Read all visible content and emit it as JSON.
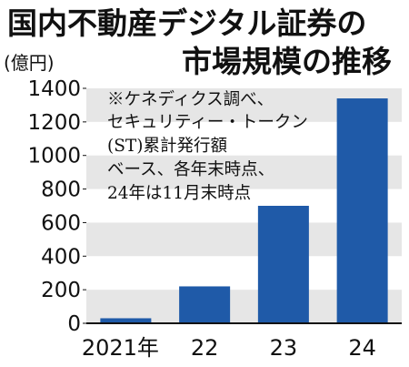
{
  "chart_data": {
    "type": "bar",
    "title_lines": [
      "国内不動産デジタル証券の",
      "市場規模の推移"
    ],
    "unit_label": "(億円)",
    "categories": [
      "2021年",
      "22",
      "23",
      "24"
    ],
    "values": [
      30,
      220,
      700,
      1340
    ],
    "ylim": [
      0,
      1400
    ],
    "yticks": [
      0,
      200,
      400,
      600,
      800,
      1000,
      1200,
      1400
    ],
    "grid": "alternating horizontal bands",
    "note_lines": [
      "※ケネディクス調べ、",
      "セキュリティー・トークン",
      "(ST)累計発行額",
      "ベース、各年末時点、",
      "24年は11月末時点"
    ],
    "colors": {
      "bar": "#1f5aa8",
      "band": "#e6e6e6",
      "text": "#111111"
    }
  }
}
